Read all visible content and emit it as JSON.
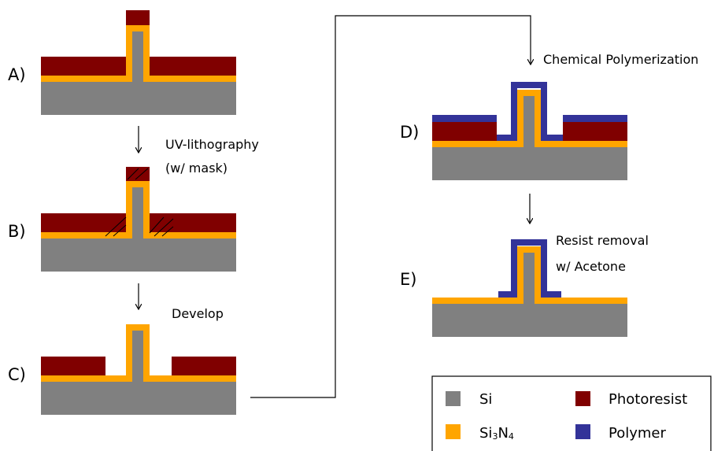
{
  "colors": {
    "si": "#808080",
    "si3n4": "#ffa500",
    "photoresist": "#800000",
    "polymer": "#333399"
  },
  "steps": {
    "a": {
      "label": "A)"
    },
    "b": {
      "label": "B)"
    },
    "c": {
      "label": "C)"
    },
    "d": {
      "label": "D)"
    },
    "e": {
      "label": "E)"
    }
  },
  "annotations": {
    "uv_line1": "UV-lithography",
    "uv_line2": "(w/ mask)",
    "develop": "Develop",
    "chemical": "Chemical Polymerization",
    "resist_line1": "Resist removal",
    "resist_line2": "w/ Acetone"
  },
  "legend": {
    "si": "Si",
    "si3n4_main_1": "Si",
    "si3n4_sub_1": "3",
    "si3n4_main_2": "N",
    "si3n4_sub_2": "4",
    "photoresist": "Photoresist",
    "polymer": "Polymer"
  }
}
